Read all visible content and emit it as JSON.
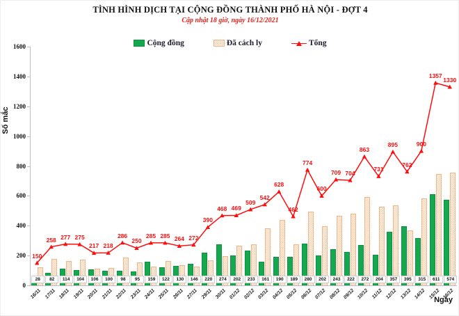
{
  "header": {
    "title": "TÌNH HÌNH DỊCH TẠI CỘNG ĐỒNG THÀNH PHỐ HÀ NỘI - ĐỢT 4",
    "subtitle": "Cập nhật 18 giờ, ngày 16/12/2021"
  },
  "legend": [
    {
      "label": "Cộng đồng",
      "marker": "green-bar-swatch",
      "color": "#16a84e"
    },
    {
      "label": "Đã cách ly",
      "marker": "peach-pattern-bar-swatch",
      "color": "#f6c79c"
    },
    {
      "label": "Tổng",
      "marker": "red-line-triangle-swatch",
      "color": "#fd0d0d"
    }
  ],
  "chart_data": {
    "type": "bar+line",
    "title": "TÌNH HÌNH DỊCH TẠI CỘNG ĐỒNG THÀNH PHỐ HÀ NỘI - ĐỢT 4",
    "subtitle": "Cập nhật 18 giờ, ngày 16/12/2021",
    "xlabel": "Ngày",
    "ylabel": "Số mắc",
    "ylim": [
      0,
      1600
    ],
    "y_ticks": [
      0,
      200,
      400,
      600,
      800,
      1000,
      1200,
      1400,
      1600
    ],
    "grid": false,
    "legend_position": "top",
    "categories": [
      "16/11",
      "17/11",
      "18/11",
      "19/11",
      "20/11",
      "21/11",
      "22/11",
      "23/11",
      "24/11",
      "25/11",
      "26/11",
      "27/11",
      "29/11",
      "30/11",
      "01/12",
      "02/12",
      "03/12",
      "04/12",
      "05/12",
      "06/12",
      "07/12",
      "08/12",
      "09/12",
      "10/12",
      "11/12",
      "12/12",
      "13/12",
      "14/12",
      "15/12",
      "16/12"
    ],
    "series": [
      {
        "name": "Cộng đồng",
        "type": "bar",
        "color": "#16a84e",
        "labels_shown": true,
        "values": [
          28,
          82,
          114,
          104,
          106,
          100,
          98,
          95,
          159,
          122,
          130,
          146,
          220,
          274,
          202,
          233,
          161,
          190,
          189,
          280,
          202,
          243,
          222,
          272,
          204,
          357,
          395,
          315,
          611,
          574
        ]
      },
      {
        "name": "Đã cách ly",
        "type": "bar",
        "color": "#f6c79c",
        "pattern": "checker",
        "labels_shown": false,
        "values": [
          122,
          176,
          163,
          171,
          111,
          118,
          188,
          155,
          126,
          163,
          134,
          126,
          170,
          194,
          267,
          276,
          381,
          438,
          273,
          494,
          398,
          466,
          482,
          591,
          527,
          538,
          367,
          585,
          746,
          756
        ]
      },
      {
        "name": "Tổng",
        "type": "line",
        "color": "#fd0d0d",
        "marker": "triangle",
        "labels_shown": true,
        "values": [
          150,
          258,
          277,
          275,
          217,
          218,
          286,
          250,
          285,
          285,
          264,
          272,
          390,
          468,
          469,
          509,
          542,
          628,
          462,
          774,
          600,
          709,
          704,
          863,
          731,
          895,
          762,
          900,
          1357,
          1330
        ]
      }
    ]
  }
}
